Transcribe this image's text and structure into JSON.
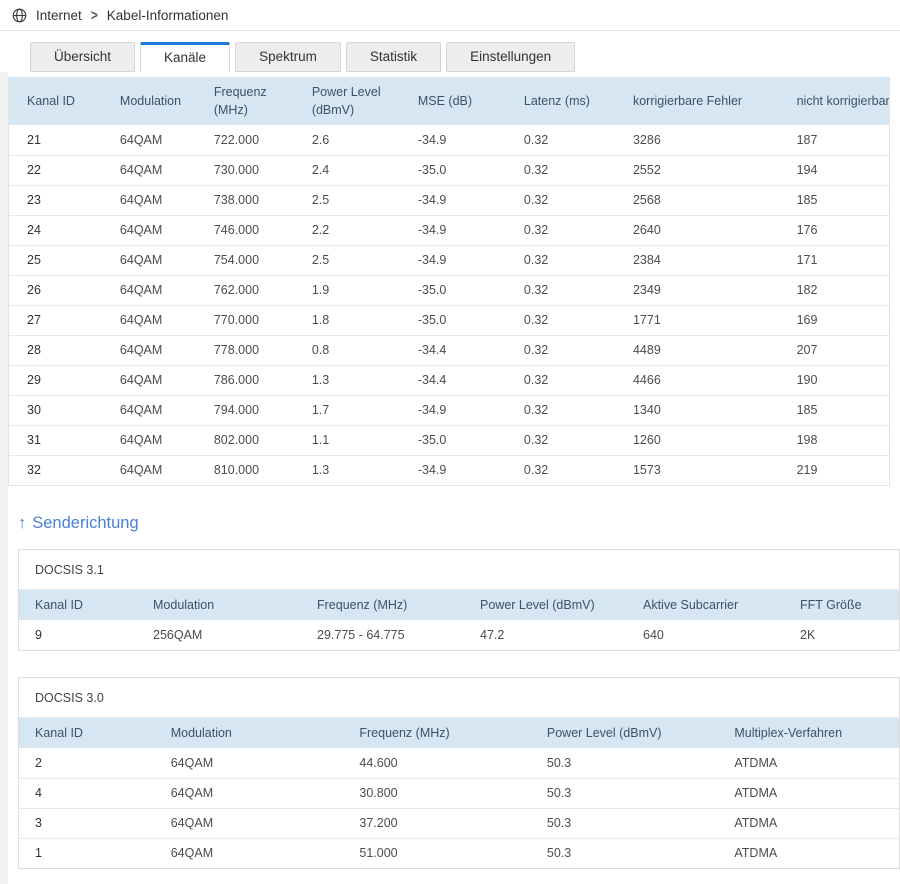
{
  "breadcrumb": {
    "icon": "globe-icon",
    "items": [
      "Internet",
      "Kabel-Informationen"
    ],
    "separator": ">"
  },
  "tabs": [
    {
      "label": "Übersicht",
      "active": false
    },
    {
      "label": "Kanäle",
      "active": true
    },
    {
      "label": "Spektrum",
      "active": false
    },
    {
      "label": "Statistik",
      "active": false
    },
    {
      "label": "Einstellungen",
      "active": false
    }
  ],
  "downstream_table": {
    "columns": [
      "Kanal ID",
      "Modulation",
      "Frequenz (MHz)",
      "Power Level (dBmV)",
      "MSE (dB)",
      "Latenz (ms)",
      "korrigierbare Fehler",
      "nicht korrigierbare Fehler"
    ],
    "rows": [
      [
        "21",
        "64QAM",
        "722.000",
        "2.6",
        "-34.9",
        "0.32",
        "3286",
        "187"
      ],
      [
        "22",
        "64QAM",
        "730.000",
        "2.4",
        "-35.0",
        "0.32",
        "2552",
        "194"
      ],
      [
        "23",
        "64QAM",
        "738.000",
        "2.5",
        "-34.9",
        "0.32",
        "2568",
        "185"
      ],
      [
        "24",
        "64QAM",
        "746.000",
        "2.2",
        "-34.9",
        "0.32",
        "2640",
        "176"
      ],
      [
        "25",
        "64QAM",
        "754.000",
        "2.5",
        "-34.9",
        "0.32",
        "2384",
        "171"
      ],
      [
        "26",
        "64QAM",
        "762.000",
        "1.9",
        "-35.0",
        "0.32",
        "2349",
        "182"
      ],
      [
        "27",
        "64QAM",
        "770.000",
        "1.8",
        "-35.0",
        "0.32",
        "1771",
        "169"
      ],
      [
        "28",
        "64QAM",
        "778.000",
        "0.8",
        "-34.4",
        "0.32",
        "4489",
        "207"
      ],
      [
        "29",
        "64QAM",
        "786.000",
        "1.3",
        "-34.4",
        "0.32",
        "4466",
        "190"
      ],
      [
        "30",
        "64QAM",
        "794.000",
        "1.7",
        "-34.9",
        "0.32",
        "1340",
        "185"
      ],
      [
        "31",
        "64QAM",
        "802.000",
        "1.1",
        "-35.0",
        "0.32",
        "1260",
        "198"
      ],
      [
        "32",
        "64QAM",
        "810.000",
        "1.3",
        "-34.9",
        "0.32",
        "1573",
        "219"
      ]
    ]
  },
  "upstream_section": {
    "arrow": "↑",
    "label": "Senderichtung"
  },
  "docsis31": {
    "title": "DOCSIS 3.1",
    "columns": [
      "Kanal ID",
      "Modulation",
      "Frequenz (MHz)",
      "Power Level (dBmV)",
      "Aktive Subcarrier",
      "FFT Größe"
    ],
    "rows": [
      [
        "9",
        "256QAM",
        "29.775 - 64.775",
        "47.2",
        "640",
        "2K"
      ]
    ]
  },
  "docsis30": {
    "title": "DOCSIS 3.0",
    "columns": [
      "Kanal ID",
      "Modulation",
      "Frequenz (MHz)",
      "Power Level (dBmV)",
      "Multiplex-Verfahren"
    ],
    "rows": [
      [
        "2",
        "64QAM",
        "44.600",
        "50.3",
        "ATDMA"
      ],
      [
        "4",
        "64QAM",
        "30.800",
        "50.3",
        "ATDMA"
      ],
      [
        "3",
        "64QAM",
        "37.200",
        "50.3",
        "ATDMA"
      ],
      [
        "1",
        "64QAM",
        "51.000",
        "50.3",
        "ATDMA"
      ]
    ]
  },
  "colors": {
    "accent_tab": "#1e78d7",
    "heading_blue": "#4a80d6",
    "table_header_bg": "#d6e7f3",
    "row_border": "#e9e9e9",
    "panel_border": "#dedede"
  }
}
